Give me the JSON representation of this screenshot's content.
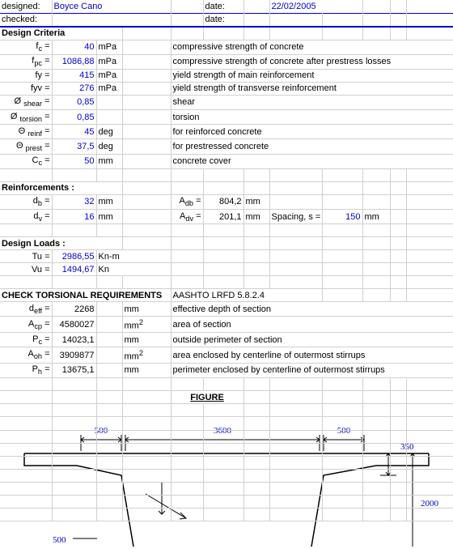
{
  "header": {
    "designed_label": "designed:",
    "designed_value": "Boyce Cano",
    "date_label_1": "date:",
    "date_value_1": "22/02/2005",
    "checked_label": "checked:",
    "date_label_2": "date:"
  },
  "criteria": {
    "title": "Design Criteria",
    "rows": [
      {
        "sym": "f<sub>c</sub> =",
        "val": "40",
        "unit": "mPa",
        "desc": "compressive strength of concrete"
      },
      {
        "sym": "f<sub>pc</sub> =",
        "val": "1086,88",
        "unit": "mPa",
        "desc": "compressive strength of concrete after prestress losses"
      },
      {
        "sym": "fy =",
        "val": "415",
        "unit": "mPa",
        "desc": "yield strength of main reinforcement"
      },
      {
        "sym": "fyv =",
        "val": "276",
        "unit": "mPa",
        "desc": "yield strength of transverse reinforcement"
      },
      {
        "sym": "Ø <sub>shear</sub> =",
        "val": "0,85",
        "unit": "",
        "desc": "shear"
      },
      {
        "sym": "Ø <sub>torsion</sub> =",
        "val": "0,85",
        "unit": "",
        "desc": "torsion"
      },
      {
        "sym": "Θ <sub>reinf</sub> =",
        "val": "45",
        "unit": "deg",
        "desc": "for reinforced concrete"
      },
      {
        "sym": "Θ <sub>prest</sub> =",
        "val": "37,5",
        "unit": "deg",
        "desc": "for prestressed concrete"
      },
      {
        "sym": "C<sub>c</sub> =",
        "val": "50",
        "unit": "mm",
        "desc": "concrete cover"
      }
    ]
  },
  "reinf": {
    "title": "Reinforcements :",
    "rows": [
      {
        "sym": "d<sub>b</sub> =",
        "val": "32",
        "unit": "mm",
        "sym2": "A<sub>db</sub> =",
        "val2": "804,2",
        "unit2": "mm",
        "extra": ""
      },
      {
        "sym": "d<sub>v</sub> =",
        "val": "16",
        "unit": "mm",
        "sym2": "A<sub>dv</sub> =",
        "val2": "201,1",
        "unit2": "mm",
        "extra": "Spacing, s =",
        "extra_val": "150",
        "extra_unit": "mm"
      }
    ]
  },
  "loads": {
    "title": "Design Loads :",
    "rows": [
      {
        "sym": "Tu =",
        "val": "2986,55",
        "unit": "Kn-m"
      },
      {
        "sym": "Vu =",
        "val": "1494,67",
        "unit": "Kn"
      }
    ]
  },
  "torsion": {
    "title": "CHECK TORSIONAL REQUIREMENTS",
    "spec": "AASHTO LRFD 5.8.2.4",
    "rows": [
      {
        "sym": "d<sub>eff</sub> =",
        "val": "2268",
        "unit": "mm",
        "desc": "effective depth of section"
      },
      {
        "sym": "A<sub>cp</sub> =",
        "val": "4580027",
        "unit": "mm<sup>2</sup>",
        "desc": "area of section"
      },
      {
        "sym": "P<sub>c</sub> =",
        "val": "14023,1",
        "unit": "mm",
        "desc": "outside perimeter of section"
      },
      {
        "sym": "A<sub>oh</sub> =",
        "val": "3909877",
        "unit": "mm<sup>2</sup>",
        "desc": "area enclosed by centerline of outermost stirrups"
      },
      {
        "sym": "P<sub>h</sub> =",
        "val": "13675,1",
        "unit": "mm",
        "desc": "perimeter enclosed by centerline of outermost stirrups"
      }
    ]
  },
  "figure": {
    "title": "FIGURE",
    "dim_left": "500",
    "dim_center": "3600",
    "dim_right": "500",
    "dim_350": "350",
    "dim_2000": "2000",
    "dim_bottom_left": "500"
  },
  "colors": {
    "grid": "#d0d0d0",
    "blue": "#0000cd",
    "text": "#000000"
  }
}
